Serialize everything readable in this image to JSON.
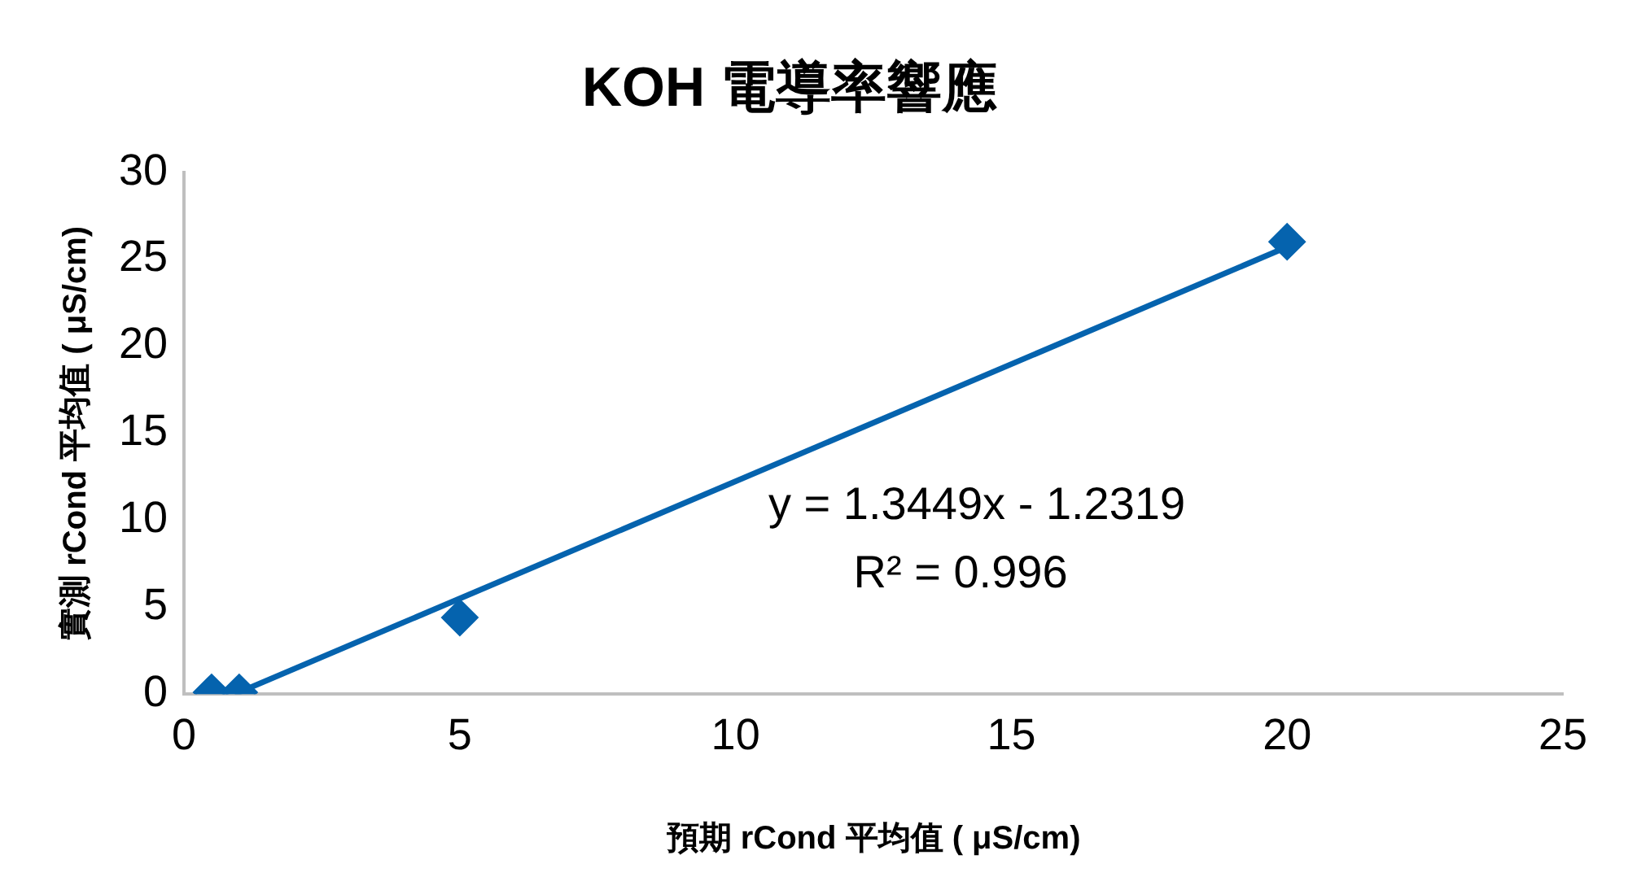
{
  "chart_data": {
    "type": "scatter",
    "title": "KOH 電導率響應",
    "xlabel": "預期 rCond 平均值 ( μS/cm)",
    "ylabel": "實測 rCond 平均值 ( μS/cm)",
    "series": [
      {
        "type": "scatter",
        "color": "#0563ae",
        "marker": "diamond",
        "x": [
          0.5,
          1,
          5,
          20
        ],
        "values": [
          0.1,
          0.1,
          4.4,
          26
        ]
      },
      {
        "type": "line",
        "color": "#0563ae",
        "marker": "none",
        "line_style": "solid",
        "x": [
          0.92,
          20
        ],
        "values": [
          0,
          25.7
        ]
      }
    ],
    "xlim": [
      0,
      25
    ],
    "xticks": [
      0,
      5,
      10,
      15,
      20,
      25
    ],
    "ylim": [
      0,
      30
    ],
    "yticks": [
      0,
      5,
      10,
      15,
      20,
      25,
      30
    ],
    "grid": false,
    "legend": false,
    "annotations": [
      "y = 1.3449x - 1.2319",
      "R² = 0.996"
    ]
  }
}
